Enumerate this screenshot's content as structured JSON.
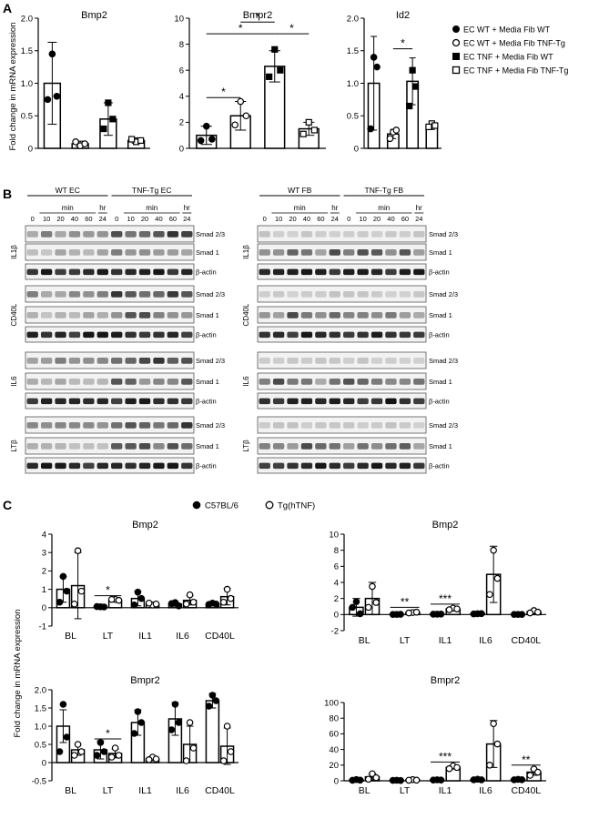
{
  "panel_labels": {
    "a": "A",
    "b": "B",
    "c": "C"
  },
  "panel_a": {
    "ylabel": "Fold change in mRNA expression",
    "legend": [
      {
        "label": "EC WT + Media Fib WT",
        "marker": "circle",
        "fill": "black"
      },
      {
        "label": "EC WT + Media Fib TNF-Tg",
        "marker": "circle",
        "fill": "white"
      },
      {
        "label": "EC TNF + Media Fib WT",
        "marker": "square",
        "fill": "black"
      },
      {
        "label": "EC TNF + Media Fib TNF-Tg",
        "marker": "square",
        "fill": "white"
      }
    ]
  },
  "panel_b": {
    "ec_groups": [
      "WT EC",
      "TNF-Tg EC"
    ],
    "fb_groups": [
      "WT FB",
      "TNF-Tg FB"
    ],
    "time_unit_min": "min",
    "time_unit_hr": "hr",
    "timepoints": [
      "0",
      "10",
      "20",
      "40",
      "60",
      "24"
    ],
    "treatments": [
      "IL1β",
      "CD40L",
      "IL6",
      "LTβ"
    ],
    "bands": [
      "Smad 2/3",
      "Smad 1",
      "β-actin"
    ]
  },
  "panel_c": {
    "ylabel": "Fold change in mRNA expression",
    "legend": [
      {
        "label": "C57BL/6",
        "fill": "black"
      },
      {
        "label": "Tg(hTNF)",
        "fill": "white"
      }
    ]
  },
  "chart_data": [
    {
      "type": "bar",
      "panel": "A",
      "title": "Bmp2",
      "categories": [
        "EC WT + Media Fib WT",
        "EC WT + Media Fib TNF-Tg",
        "EC TNF + Media Fib WT",
        "EC TNF + Media Fib TNF-Tg"
      ],
      "values": [
        1.0,
        0.07,
        0.45,
        0.12
      ],
      "errors": [
        0.63,
        0.04,
        0.25,
        0.04
      ],
      "points": [
        [
          1.45,
          0.8,
          0.75
        ],
        [
          0.04,
          0.07,
          0.1
        ],
        [
          0.7,
          0.45,
          0.3
        ],
        [
          0.1,
          0.12,
          0.14
        ]
      ],
      "ylim": [
        0,
        2
      ],
      "yticks": [
        "0",
        "0.5",
        "1.0",
        "1.5",
        "2.0"
      ],
      "significance": []
    },
    {
      "type": "bar",
      "panel": "A",
      "title": "Bmpr2",
      "categories": [
        "EC WT + Media Fib WT",
        "EC WT + Media Fib TNF-Tg",
        "EC TNF + Media Fib WT",
        "EC TNF + Media Fib TNF-Tg"
      ],
      "values": [
        1.0,
        2.5,
        6.3,
        1.5
      ],
      "errors": [
        0.7,
        1.1,
        1.2,
        0.5
      ],
      "points": [
        [
          1.7,
          0.7,
          0.6
        ],
        [
          3.6,
          2.5,
          1.8
        ],
        [
          7.6,
          6.0,
          5.5
        ],
        [
          2.0,
          1.4,
          1.1
        ]
      ],
      "ylim": [
        0,
        10
      ],
      "yticks": [
        "0",
        "2",
        "4",
        "6",
        "8",
        "10"
      ],
      "significance": [
        {
          "from": 0,
          "to": 1,
          "y": 3.9,
          "label": "*"
        },
        {
          "from": 0,
          "to": 2,
          "y": 8.8,
          "label": "*"
        },
        {
          "from": 1,
          "to": 2,
          "y": 9.7,
          "label": "*"
        },
        {
          "from": 2,
          "to": 3,
          "y": 8.8,
          "label": "*"
        }
      ]
    },
    {
      "type": "bar",
      "panel": "A",
      "title": "Id2",
      "categories": [
        "EC WT + Media Fib WT",
        "EC WT + Media Fib TNF-Tg",
        "EC TNF + Media Fib WT",
        "EC TNF + Media Fib TNF-Tg"
      ],
      "values": [
        1.0,
        0.22,
        1.03,
        0.35
      ],
      "errors": [
        0.72,
        0.07,
        0.36,
        0.06
      ],
      "points": [
        [
          1.4,
          1.25,
          0.3
        ],
        [
          0.25,
          0.28,
          0.15
        ],
        [
          1.2,
          0.95,
          0.65
        ],
        [
          0.38,
          0.35,
          0.33
        ]
      ],
      "ylim": [
        0,
        2
      ],
      "yticks": [
        "0",
        "0.5",
        "1.0",
        "1.5",
        "2.0"
      ],
      "significance": [
        {
          "from": 1,
          "to": 2,
          "y": 1.53,
          "label": "*"
        }
      ]
    },
    {
      "type": "bar",
      "panel": "C",
      "title": "Bmp2",
      "categories": [
        "BL",
        "LT",
        "IL1",
        "IL6",
        "CD40L"
      ],
      "series": [
        {
          "name": "C57BL/6",
          "values": [
            1.0,
            0.05,
            0.5,
            0.2,
            0.2
          ],
          "errors": [
            0.7,
            0.05,
            0.4,
            0.12,
            0.05
          ],
          "points": [
            [
              1.7,
              0.9,
              0.3
            ],
            [
              0.05,
              0.04,
              0.06
            ],
            [
              0.85,
              0.5,
              0.15
            ],
            [
              0.28,
              0.1,
              0.22
            ],
            [
              0.25,
              0.2,
              0.18
            ]
          ]
        },
        {
          "name": "Tg(hTNF)",
          "values": [
            1.2,
            0.42,
            0.2,
            0.4,
            0.6
          ],
          "errors": [
            1.8,
            0.1,
            0.08,
            0.25,
            0.45
          ],
          "points": [
            [
              3.1,
              0.9,
              0.2
            ],
            [
              0.45,
              0.4,
              0.45
            ],
            [
              0.15,
              0.2,
              0.25
            ],
            [
              0.7,
              0.3,
              0.2
            ],
            [
              1.0,
              0.5,
              0.3
            ]
          ]
        }
      ],
      "ylim": [
        -1,
        4
      ],
      "yticks": [
        "-1",
        "0",
        "1",
        "2",
        "3",
        "4"
      ],
      "significance": [
        {
          "category": 1,
          "y": 0.65,
          "label": "*"
        }
      ]
    },
    {
      "type": "bar",
      "panel": "C",
      "title": "Bmp2",
      "categories": [
        "BL",
        "LT",
        "IL1",
        "IL6",
        "CD40L"
      ],
      "series": [
        {
          "name": "C57BL/6",
          "values": [
            0.9,
            0.02,
            0.05,
            0.1,
            0.02
          ],
          "errors": [
            1.1,
            0.02,
            0.03,
            0.05,
            0.02
          ],
          "points": [
            [
              1.6,
              0.1,
              0.9
            ],
            [
              0.02,
              0.03,
              0.02
            ],
            [
              0.05,
              0.06,
              0.05
            ],
            [
              0.1,
              0.12,
              0.08
            ],
            [
              0.02,
              0.02,
              0.02
            ]
          ]
        },
        {
          "name": "Tg(hTNF)",
          "values": [
            2.0,
            0.25,
            0.7,
            5.0,
            0.35
          ],
          "errors": [
            2.0,
            0.1,
            0.2,
            3.5,
            0.2
          ],
          "points": [
            [
              3.5,
              1.5,
              0.9
            ],
            [
              0.25,
              0.3,
              0.2
            ],
            [
              0.8,
              0.7,
              0.6
            ],
            [
              8.0,
              4.5,
              2.5
            ],
            [
              0.5,
              0.3,
              0.2
            ]
          ]
        }
      ],
      "ylim": [
        -2,
        10
      ],
      "yticks": [
        "-2",
        "0",
        "2",
        "4",
        "6",
        "8",
        "10"
      ],
      "significance": [
        {
          "category": 1,
          "y": 0.9,
          "label": "**"
        },
        {
          "category": 2,
          "y": 1.3,
          "label": "***"
        }
      ]
    },
    {
      "type": "bar",
      "panel": "C",
      "title": "Bmpr2",
      "categories": [
        "BL",
        "LT",
        "IL1",
        "IL6",
        "CD40L"
      ],
      "series": [
        {
          "name": "C57BL/6",
          "values": [
            1.0,
            0.35,
            1.1,
            1.2,
            1.7
          ],
          "errors": [
            0.45,
            0.25,
            0.35,
            0.45,
            0.2
          ],
          "points": [
            [
              1.6,
              0.7,
              0.3
            ],
            [
              0.55,
              0.3,
              0.2
            ],
            [
              1.4,
              1.1,
              0.8
            ],
            [
              1.6,
              1.1,
              0.9
            ],
            [
              1.85,
              1.7,
              1.55
            ]
          ]
        },
        {
          "name": "Tg(hTNF)",
          "values": [
            0.35,
            0.25,
            0.1,
            0.5,
            0.45
          ],
          "errors": [
            0.15,
            0.12,
            0.05,
            0.5,
            0.5
          ],
          "points": [
            [
              0.5,
              0.3,
              0.2
            ],
            [
              0.4,
              0.2,
              0.15
            ],
            [
              0.15,
              0.1,
              0.08
            ],
            [
              1.1,
              0.4,
              0.05
            ],
            [
              1.0,
              0.3,
              0.05
            ]
          ]
        }
      ],
      "ylim": [
        -0.5,
        2
      ],
      "yticks": [
        "-0.5",
        "0",
        "0.5",
        "1.0",
        "1.5",
        "2.0"
      ],
      "significance": [
        {
          "category": 1,
          "y": 0.65,
          "label": "*"
        }
      ]
    },
    {
      "type": "bar",
      "panel": "C",
      "title": "Bmpr2",
      "categories": [
        "BL",
        "LT",
        "IL1",
        "IL6",
        "CD40L"
      ],
      "series": [
        {
          "name": "C57BL/6",
          "values": [
            1.0,
            0.5,
            1.0,
            1.5,
            1.5
          ],
          "errors": [
            0.5,
            0.3,
            0.3,
            0.8,
            0.5
          ],
          "points": [
            [
              1.5,
              0.8,
              0.7
            ],
            [
              0.6,
              0.4,
              0.5
            ],
            [
              1.2,
              0.9,
              0.9
            ],
            [
              2.0,
              1.2,
              1.3
            ],
            [
              1.8,
              1.4,
              1.3
            ]
          ]
        },
        {
          "name": "Tg(hTNF)",
          "values": [
            5.0,
            1.0,
            17.0,
            47.0,
            11.0
          ],
          "errors": [
            4.0,
            0.5,
            2.0,
            30.0,
            4.0
          ],
          "points": [
            [
              9.0,
              4.0,
              2.0
            ],
            [
              1.5,
              0.8,
              0.7
            ],
            [
              19.0,
              17.0,
              15.5
            ],
            [
              73.0,
              47.0,
              20.0
            ],
            [
              15.0,
              11.0,
              7.0
            ]
          ]
        }
      ],
      "ylim": [
        0,
        100
      ],
      "yticks": [
        "0",
        "20",
        "40",
        "60",
        "80",
        "100"
      ],
      "significance": [
        {
          "category": 2,
          "y": 24.0,
          "label": "***"
        },
        {
          "category": 4,
          "y": 20.0,
          "label": "**"
        }
      ]
    }
  ]
}
